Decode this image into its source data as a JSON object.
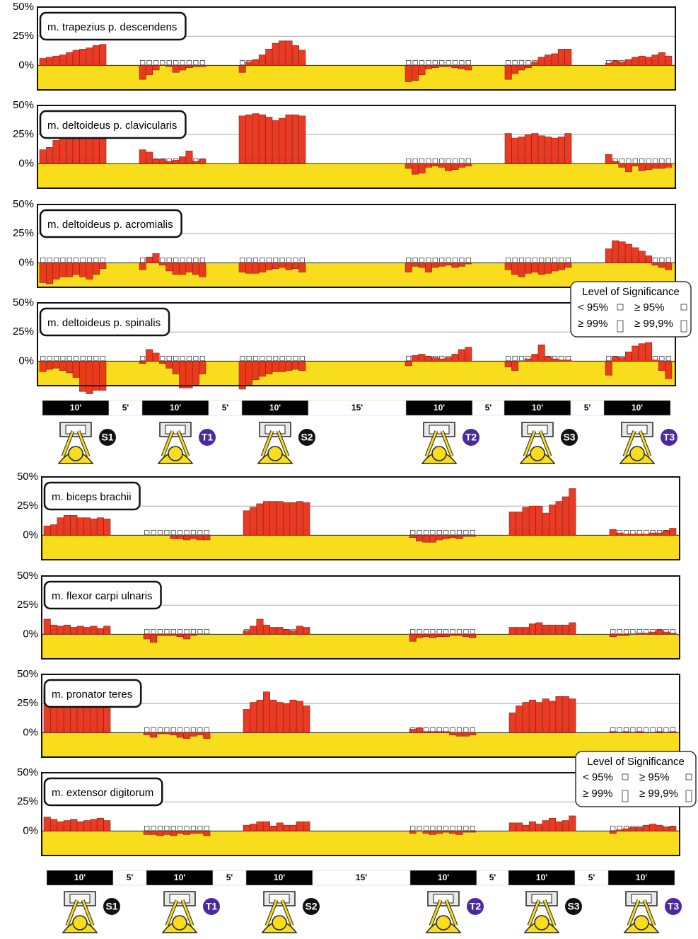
{
  "chart_data": [
    {
      "type": "bar",
      "title": "m. trapezius p. descendens",
      "color": "#e8321a",
      "background": "#f7dd1c",
      "ylim": [
        -21,
        50
      ],
      "yticks": [
        {
          "value": 0,
          "label": "0%"
        },
        {
          "value": 25,
          "label": "25%"
        },
        {
          "value": 50,
          "label": "50%"
        }
      ],
      "values": [
        [
          6,
          7,
          8,
          9,
          11,
          13,
          14,
          15,
          17,
          18
        ],
        [
          -12,
          -8,
          -4,
          0,
          -1,
          -6,
          -4,
          -2,
          -1,
          -1
        ],
        [
          -6,
          3,
          5,
          9,
          14,
          19,
          21,
          21,
          17,
          13
        ],
        [
          -14,
          -13,
          -8,
          -3,
          -2,
          -1,
          -1,
          -2,
          -3,
          -4
        ],
        [
          -12,
          -7,
          -4,
          -2,
          3,
          7,
          9,
          10,
          14,
          14
        ],
        [
          2,
          4,
          3,
          5,
          7,
          8,
          7,
          9,
          11,
          8
        ]
      ]
    },
    {
      "type": "bar",
      "title": "m. deltoideus p. clavicularis",
      "color": "#e8321a",
      "background": "#f7dd1c",
      "ylim": [
        -21,
        50
      ],
      "yticks": [
        {
          "value": 0,
          "label": "0%"
        },
        {
          "value": 25,
          "label": "25%"
        },
        {
          "value": 50,
          "label": "50%"
        }
      ],
      "values": [
        [
          12,
          14,
          20,
          26,
          30,
          33,
          28,
          30,
          29,
          28
        ],
        [
          12,
          10,
          4,
          4,
          2,
          3,
          6,
          11,
          2,
          4
        ],
        [
          41,
          42,
          43,
          42,
          40,
          37,
          39,
          42,
          42,
          41
        ],
        [
          -4,
          -9,
          -8,
          -3,
          -2,
          -3,
          -6,
          -5,
          -3,
          -2
        ],
        [
          26,
          22,
          23,
          25,
          26,
          24,
          23,
          22,
          23,
          26
        ],
        [
          8,
          2,
          -3,
          -7,
          -2,
          -6,
          -5,
          -4,
          -4,
          -3
        ]
      ]
    },
    {
      "type": "bar",
      "title": "m. deltoideus p. acromialis",
      "color": "#e8321a",
      "background": "#f7dd1c",
      "ylim": [
        -21,
        50
      ],
      "yticks": [
        {
          "value": 0,
          "label": "0%"
        },
        {
          "value": 25,
          "label": "25%"
        },
        {
          "value": 50,
          "label": "50%"
        }
      ],
      "values": [
        [
          -17,
          -18,
          -14,
          -12,
          -12,
          -10,
          -12,
          -14,
          -10,
          -5
        ],
        [
          -6,
          5,
          8,
          -2,
          -7,
          -10,
          -10,
          -8,
          -10,
          -12
        ],
        [
          -8,
          -9,
          -9,
          -8,
          -6,
          -5,
          -4,
          -6,
          -5,
          -8
        ],
        [
          -8,
          -3,
          -4,
          -8,
          -4,
          -3,
          -2,
          -4,
          -3,
          -1
        ],
        [
          -6,
          -10,
          -12,
          -9,
          -8,
          -10,
          -9,
          -7,
          -6,
          -4
        ],
        [
          12,
          19,
          18,
          16,
          13,
          10,
          6,
          -2,
          -4,
          -6
        ]
      ]
    },
    {
      "type": "bar",
      "title": "m. deltoideus p. spinalis",
      "color": "#e8321a",
      "background": "#f7dd1c",
      "ylim": [
        -21,
        50
      ],
      "yticks": [
        {
          "value": 0,
          "label": "0%"
        },
        {
          "value": 25,
          "label": "25%"
        },
        {
          "value": 50,
          "label": "50%"
        }
      ],
      "values": [
        [
          -9,
          -7,
          -6,
          -8,
          -10,
          -14,
          -26,
          -28,
          -25,
          -25
        ],
        [
          -2,
          10,
          7,
          -2,
          -6,
          -11,
          -23,
          -23,
          -20,
          -11
        ],
        [
          -24,
          -20,
          -16,
          -13,
          -11,
          -9,
          -9,
          -8,
          -7,
          -8
        ],
        [
          -4,
          5,
          6,
          4,
          3,
          2,
          3,
          6,
          10,
          12
        ],
        [
          -5,
          -8,
          0,
          2,
          6,
          14,
          4,
          2,
          1,
          1
        ],
        [
          -12,
          4,
          3,
          8,
          13,
          15,
          16,
          1,
          -8,
          -15
        ]
      ]
    },
    {
      "type": "bar",
      "title": "m. biceps brachii",
      "color": "#e8321a",
      "background": "#f7dd1c",
      "ylim": [
        -21,
        50
      ],
      "yticks": [
        {
          "value": 0,
          "label": "0%"
        },
        {
          "value": 25,
          "label": "25%"
        },
        {
          "value": 50,
          "label": "50%"
        }
      ],
      "values": [
        [
          8,
          9,
          15,
          17,
          17,
          15,
          15,
          14,
          15,
          14
        ],
        [
          0,
          0,
          0,
          0,
          -3,
          -3,
          -4,
          -3,
          -4,
          -4
        ],
        [
          21,
          24,
          27,
          29,
          29,
          29,
          28,
          28,
          29,
          28
        ],
        [
          -2,
          -5,
          -6,
          -6,
          -4,
          -3,
          -2,
          -3,
          -1,
          -1
        ],
        [
          20,
          20,
          24,
          25,
          25,
          19,
          26,
          29,
          33,
          40
        ],
        [
          5,
          2,
          1,
          1,
          1,
          1,
          2,
          2,
          4,
          6
        ]
      ]
    },
    {
      "type": "bar",
      "title": "m. flexor carpi ulnaris",
      "color": "#e8321a",
      "background": "#f7dd1c",
      "ylim": [
        -21,
        50
      ],
      "yticks": [
        {
          "value": 0,
          "label": "0%"
        },
        {
          "value": 25,
          "label": "25%"
        },
        {
          "value": 50,
          "label": "50%"
        }
      ],
      "values": [
        [
          13,
          8,
          7,
          8,
          6,
          7,
          6,
          7,
          5,
          7
        ],
        [
          -4,
          -7,
          -1,
          -1,
          -1,
          -2,
          -4,
          -1,
          0,
          0
        ],
        [
          3,
          7,
          13,
          8,
          6,
          6,
          4,
          3,
          7,
          6
        ],
        [
          -6,
          -3,
          -2,
          -3,
          -2,
          -2,
          -1,
          -1,
          -2,
          -3
        ],
        [
          6,
          6,
          6,
          9,
          10,
          8,
          8,
          8,
          8,
          10
        ],
        [
          -2,
          -1,
          -1,
          0,
          1,
          1,
          2,
          4,
          2,
          1
        ]
      ]
    },
    {
      "type": "bar",
      "title": "m. pronator teres",
      "color": "#e8321a",
      "background": "#f7dd1c",
      "ylim": [
        -21,
        50
      ],
      "yticks": [
        {
          "value": 0,
          "label": "0%"
        },
        {
          "value": 25,
          "label": "25%"
        },
        {
          "value": 50,
          "label": "50%"
        }
      ],
      "values": [
        [
          37,
          30,
          25,
          22,
          22,
          23,
          22,
          25,
          26,
          24
        ],
        [
          -2,
          -4,
          -1,
          -1,
          -2,
          -4,
          -5,
          -3,
          -2,
          -5
        ],
        [
          20,
          26,
          28,
          35,
          28,
          26,
          25,
          28,
          27,
          23
        ],
        [
          3,
          4,
          1,
          1,
          1,
          1,
          -2,
          -3,
          -3,
          -2
        ],
        [
          17,
          23,
          26,
          28,
          26,
          29,
          27,
          31,
          31,
          29
        ],
        [
          1,
          0,
          1,
          0,
          1,
          0,
          0,
          1,
          0,
          1
        ]
      ]
    },
    {
      "type": "bar",
      "title": "m. extensor digitorum",
      "color": "#e8321a",
      "background": "#f7dd1c",
      "ylim": [
        -21,
        50
      ],
      "yticks": [
        {
          "value": 0,
          "label": "0%"
        },
        {
          "value": 25,
          "label": "25%"
        },
        {
          "value": 50,
          "label": "50%"
        }
      ],
      "values": [
        [
          12,
          10,
          8,
          9,
          10,
          8,
          9,
          10,
          11,
          9
        ],
        [
          -3,
          -3,
          -4,
          -3,
          -4,
          -2,
          -3,
          -2,
          -2,
          -4
        ],
        [
          5,
          6,
          8,
          8,
          4,
          7,
          5,
          5,
          8,
          8
        ],
        [
          -2,
          0,
          -2,
          -3,
          -2,
          -1,
          -2,
          -3,
          -1,
          -1
        ],
        [
          7,
          7,
          5,
          8,
          6,
          9,
          11,
          8,
          9,
          13
        ],
        [
          -2,
          1,
          2,
          3,
          3,
          5,
          6,
          5,
          3,
          4
        ]
      ]
    }
  ],
  "sessions": [
    {
      "label": "S1",
      "color": "#111111"
    },
    {
      "label": "T1",
      "color": "#4b2aa0"
    },
    {
      "label": "S2",
      "color": "#111111"
    },
    {
      "label": "T2",
      "color": "#4b2aa0"
    },
    {
      "label": "S3",
      "color": "#111111"
    },
    {
      "label": "T3",
      "color": "#4b2aa0"
    }
  ],
  "timeline": [
    "10'",
    "5'",
    "10'",
    "5'",
    "10'",
    "15'",
    "10'",
    "5'",
    "10'",
    "5'",
    "10'"
  ],
  "legend": {
    "title": "Level of Significance",
    "items": [
      "< 95%",
      "≥ 95%",
      "≥ 99%",
      "≥ 99,9%"
    ]
  }
}
